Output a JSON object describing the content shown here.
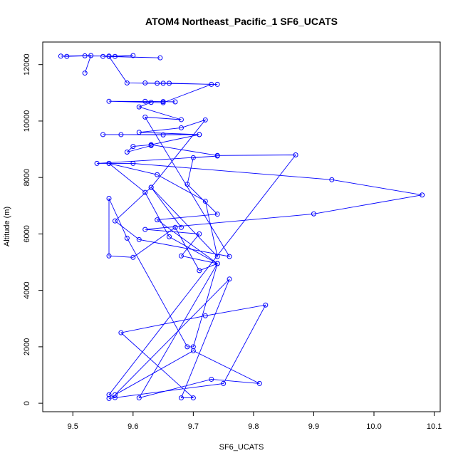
{
  "chart_data": {
    "type": "line",
    "title": "ATOM4 Northeast_Pacific_1 SF6_UCATS",
    "xlabel": "SF6_UCATS",
    "ylabel": "Altitude (m)",
    "xlim": [
      9.45,
      10.11
    ],
    "ylim": [
      -300,
      12800
    ],
    "x_ticks": [
      9.5,
      9.6,
      9.7,
      9.8,
      9.9,
      10.0,
      10.1
    ],
    "x_tick_labels": [
      "9.5",
      "9.6",
      "9.7",
      "9.8",
      "9.9",
      "10.0",
      "10.1"
    ],
    "y_ticks": [
      0,
      2000,
      4000,
      6000,
      8000,
      10000,
      12000
    ],
    "y_tick_labels": [
      "0",
      "2000",
      "4000",
      "6000",
      "8000",
      "10000",
      "12000"
    ],
    "grid": false,
    "legend": "none",
    "series": [
      {
        "color": "#0000ff",
        "marker": "open-circle",
        "points": [
          [
            9.52,
            11700
          ],
          [
            9.53,
            12320
          ],
          [
            9.48,
            12300
          ],
          [
            9.49,
            12290
          ],
          [
            9.52,
            12310
          ],
          [
            9.56,
            12300
          ],
          [
            9.57,
            12290
          ],
          [
            9.6,
            12320
          ],
          [
            9.55,
            12290
          ],
          [
            9.645,
            12240
          ],
          [
            9.56,
            12290
          ],
          [
            9.59,
            11350
          ],
          [
            9.74,
            11300
          ],
          [
            9.62,
            11350
          ],
          [
            9.64,
            11340
          ],
          [
            9.65,
            11340
          ],
          [
            9.66,
            11340
          ],
          [
            9.73,
            11300
          ],
          [
            9.65,
            10650
          ],
          [
            9.56,
            10700
          ],
          [
            9.65,
            10690
          ],
          [
            9.67,
            10680
          ],
          [
            9.62,
            10700
          ],
          [
            9.63,
            10660
          ],
          [
            9.61,
            10500
          ],
          [
            9.68,
            10050
          ],
          [
            9.62,
            10140
          ],
          [
            9.76,
            5200
          ],
          [
            9.61,
            5800
          ],
          [
            9.57,
            6460
          ],
          [
            9.63,
            7650
          ],
          [
            9.72,
            10040
          ],
          [
            9.68,
            9760
          ],
          [
            9.61,
            9600
          ],
          [
            9.71,
            9520
          ],
          [
            9.55,
            9520
          ],
          [
            9.58,
            9520
          ],
          [
            9.65,
            9510
          ],
          [
            9.71,
            9520
          ],
          [
            9.63,
            9160
          ],
          [
            9.6,
            9100
          ],
          [
            9.59,
            8900
          ],
          [
            9.63,
            9130
          ],
          [
            9.63,
            9160
          ],
          [
            9.74,
            8780
          ],
          [
            9.87,
            8800
          ],
          [
            9.56,
            300
          ],
          [
            9.57,
            200
          ],
          [
            9.56,
            170
          ],
          [
            9.75,
            700
          ],
          [
            9.82,
            3480
          ],
          [
            9.72,
            3100
          ],
          [
            9.58,
            2500
          ],
          [
            9.7,
            190
          ],
          [
            9.68,
            190
          ],
          [
            9.76,
            4400
          ],
          [
            9.57,
            300
          ],
          [
            9.7,
            1860
          ],
          [
            9.81,
            700
          ],
          [
            9.73,
            850
          ],
          [
            9.61,
            190
          ],
          [
            9.74,
            4950
          ],
          [
            9.64,
            6500
          ],
          [
            9.74,
            6700
          ],
          [
            9.69,
            7760
          ],
          [
            9.7,
            8700
          ],
          [
            9.74,
            8760
          ],
          [
            9.54,
            8500
          ],
          [
            9.56,
            8500
          ],
          [
            9.6,
            8500
          ],
          [
            9.93,
            7920
          ],
          [
            10.08,
            7380
          ],
          [
            9.9,
            6710
          ],
          [
            9.62,
            6160
          ],
          [
            9.71,
            6000
          ],
          [
            9.68,
            5220
          ],
          [
            9.74,
            4950
          ],
          [
            9.7,
            2000
          ],
          [
            9.69,
            2000
          ],
          [
            9.59,
            5850
          ],
          [
            9.56,
            7260
          ],
          [
            9.56,
            5220
          ],
          [
            9.6,
            5170
          ],
          [
            9.67,
            6230
          ],
          [
            9.71,
            4700
          ],
          [
            9.74,
            4950
          ],
          [
            9.66,
            5900
          ],
          [
            9.62,
            7470
          ],
          [
            9.56,
            8500
          ],
          [
            9.64,
            8100
          ],
          [
            9.72,
            7160
          ],
          [
            9.74,
            5200
          ],
          [
            9.63,
            7650
          ],
          [
            9.68,
            6230
          ]
        ]
      }
    ]
  }
}
